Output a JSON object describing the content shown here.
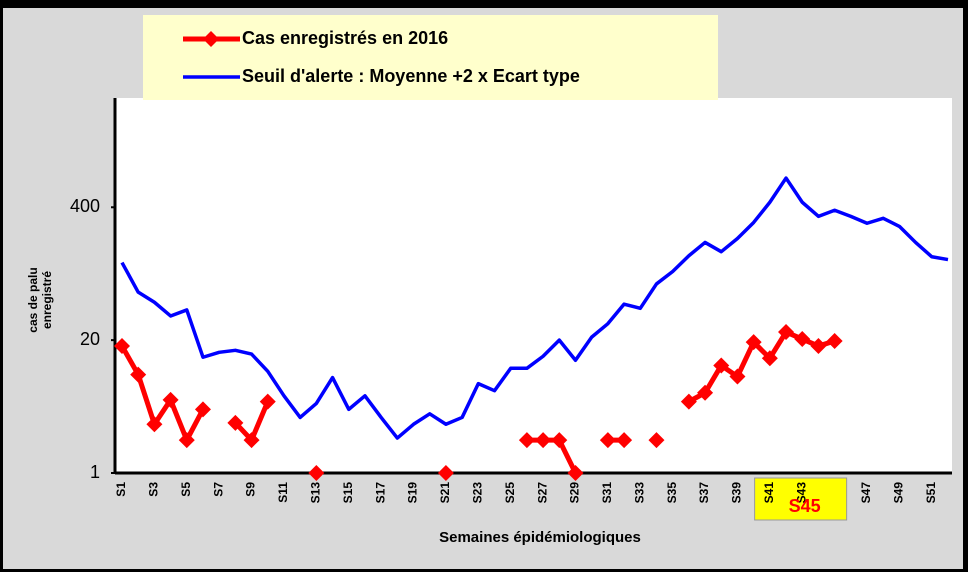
{
  "chart_data": {
    "type": "line",
    "y_label": "cas de palu enregistré",
    "x_label": "Semaines épidémiologiques",
    "log_scale": true,
    "ylim": [
      1,
      4700
    ],
    "yticks": [
      1,
      20,
      400
    ],
    "grid": false,
    "legend": "top",
    "highlight": {
      "category": 44,
      "color": "#ffff00"
    },
    "categories": [
      "S1",
      null,
      "S3",
      null,
      "S5",
      null,
      "S7",
      null,
      "S9",
      null,
      "S11",
      null,
      "S13",
      null,
      "S15",
      null,
      "S17",
      null,
      "S19",
      null,
      "S21",
      null,
      "S23",
      null,
      "S25",
      null,
      "S27",
      null,
      "S29",
      null,
      "S31",
      null,
      "S33",
      null,
      "S35",
      null,
      "S37",
      null,
      "S39",
      null,
      "S41",
      null,
      "S43",
      null,
      "S45",
      null,
      "S47",
      null,
      "S49",
      null,
      "S51",
      null
    ],
    "series": [
      {
        "name": "Cas enregistrés en 2016",
        "color": "#ff0000",
        "marker": "diamond",
        "values": [
          17.5,
          9.2,
          3.0,
          5.2,
          2.1,
          4.2,
          null,
          3.1,
          2.1,
          5.0,
          null,
          null,
          1,
          null,
          null,
          null,
          null,
          null,
          null,
          null,
          1,
          null,
          null,
          null,
          null,
          2.1,
          2.1,
          2.1,
          1,
          null,
          2.1,
          2.1,
          null,
          2.1,
          null,
          5.0,
          6.1,
          11.3,
          8.8,
          19.1,
          13.3,
          24,
          20.5,
          17.5,
          19.6,
          null,
          null,
          null,
          null,
          null,
          null,
          null
        ]
      },
      {
        "name": "Seuil d'alerte : Moyenne +2 x Ecart type",
        "color": "#0000ff",
        "marker": null,
        "values": [
          115,
          59,
          47,
          34.5,
          39.5,
          13.6,
          15.2,
          15.9,
          14.6,
          9.9,
          5.7,
          3.5,
          4.8,
          8.6,
          4.2,
          5.7,
          3.5,
          2.2,
          3.0,
          3.8,
          3.0,
          3.5,
          7.5,
          6.4,
          10.6,
          10.6,
          13.9,
          20,
          12.7,
          21.4,
          29,
          45,
          41,
          71,
          94,
          134,
          181,
          147,
          198,
          284,
          448,
          773,
          448,
          326,
          374,
          326,
          279,
          312,
          260,
          181,
          131,
          123
        ]
      }
    ]
  }
}
